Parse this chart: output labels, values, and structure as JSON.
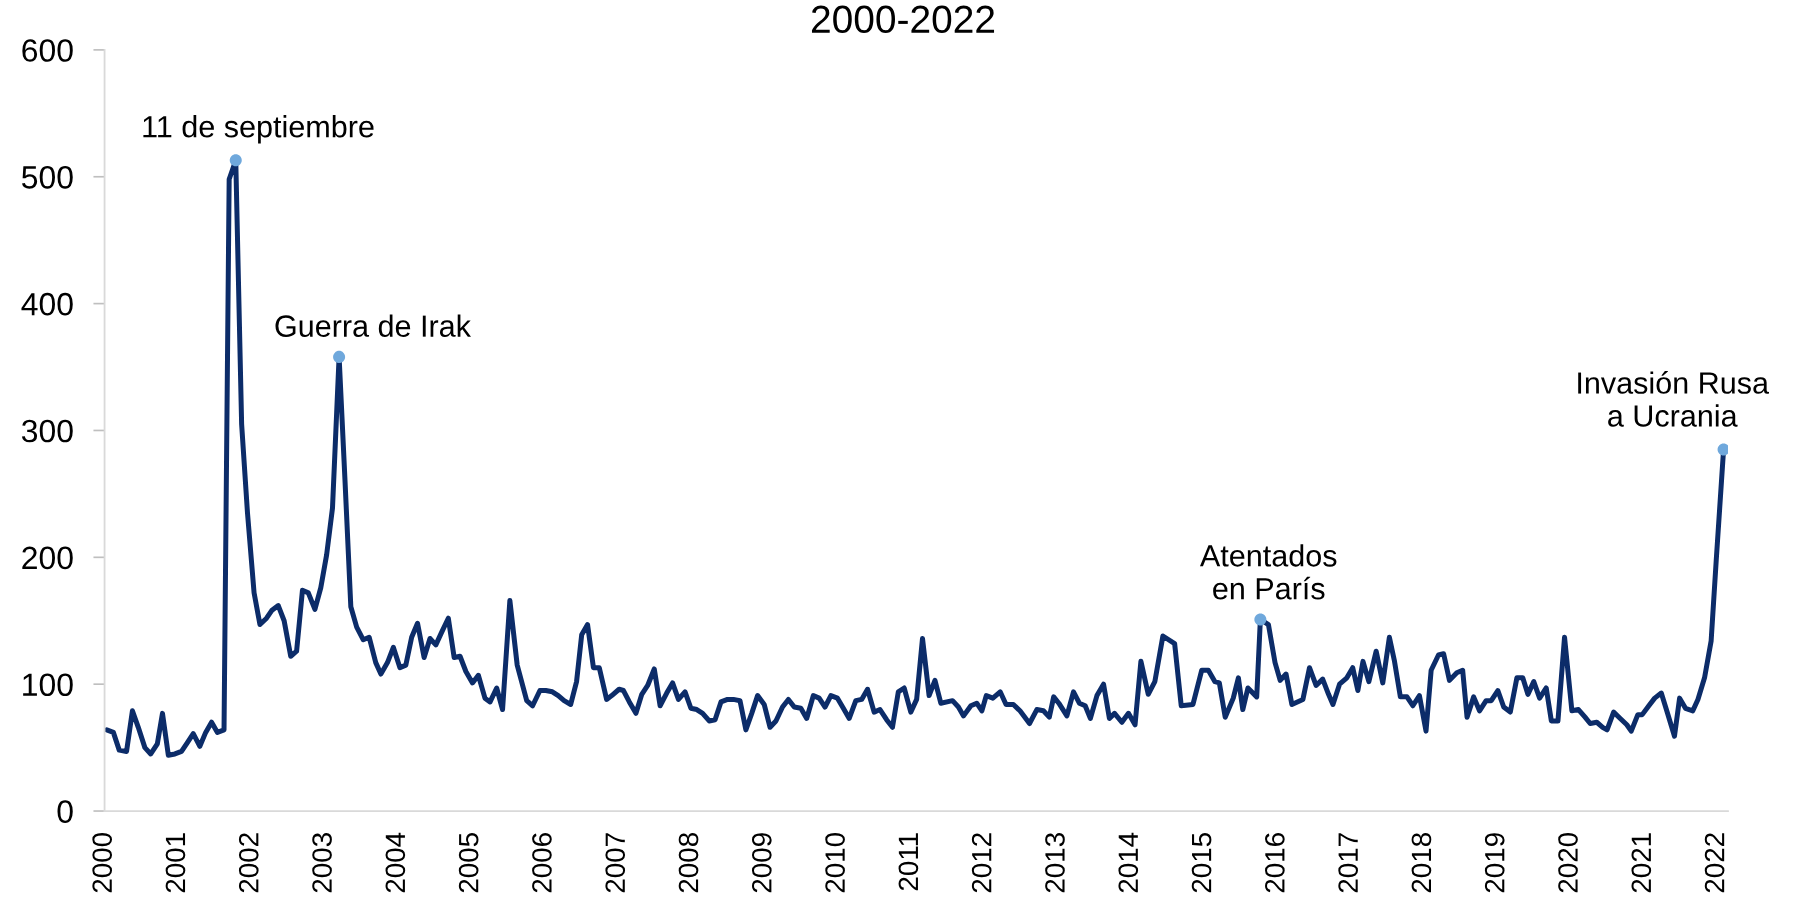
{
  "chart_data": {
    "type": "line",
    "title": "2000-2022",
    "xlim": [
      2000,
      2022.15
    ],
    "xticks": [
      2000,
      2001,
      2002,
      2003,
      2004,
      2005,
      2006,
      2007,
      2008,
      2009,
      2010,
      2011,
      2012,
      2013,
      2014,
      2015,
      2016,
      2017,
      2018,
      2019,
      2020,
      2021,
      2022
    ],
    "ylim": [
      0,
      600
    ],
    "yticks": [
      0,
      100,
      200,
      300,
      400,
      500,
      600
    ],
    "series": [
      {
        "color": "#0c2c69",
        "x": [
          2000.03,
          2000.12,
          2000.2,
          2000.3,
          2000.38,
          2000.46,
          2000.55,
          2000.63,
          2000.72,
          2000.79,
          2000.87,
          2000.96,
          2001.05,
          2001.13,
          2001.21,
          2001.3,
          2001.38,
          2001.46,
          2001.54,
          2001.63,
          2001.7,
          2001.79,
          2001.87,
          2001.95,
          2002.04,
          2002.12,
          2002.21,
          2002.28,
          2002.37,
          2002.45,
          2002.54,
          2002.62,
          2002.7,
          2002.78,
          2002.87,
          2002.95,
          2003.03,
          2003.11,
          2003.2,
          2003.28,
          2003.36,
          2003.44,
          2003.53,
          2003.61,
          2003.7,
          2003.77,
          2003.86,
          2003.94,
          2004.03,
          2004.11,
          2004.19,
          2004.27,
          2004.36,
          2004.44,
          2004.52,
          2004.6,
          2004.69,
          2004.77,
          2004.85,
          2004.93,
          2005.02,
          2005.1,
          2005.19,
          2005.26,
          2005.35,
          2005.43,
          2005.53,
          2005.63,
          2005.76,
          2005.84,
          2005.94,
          2006.02,
          2006.11,
          2006.19,
          2006.27,
          2006.36,
          2006.44,
          2006.51,
          2006.59,
          2006.67,
          2006.75,
          2006.85,
          2006.92,
          2007.02,
          2007.08,
          2007.16,
          2007.25,
          2007.33,
          2007.41,
          2007.5,
          2007.58,
          2007.67,
          2007.75,
          2007.83,
          2007.92,
          2008.0,
          2008.08,
          2008.16,
          2008.25,
          2008.33,
          2008.41,
          2008.5,
          2008.58,
          2008.67,
          2008.75,
          2008.83,
          2008.91,
          2009.0,
          2009.08,
          2009.16,
          2009.25,
          2009.33,
          2009.41,
          2009.5,
          2009.58,
          2009.67,
          2009.75,
          2009.83,
          2009.91,
          2010.0,
          2010.08,
          2010.16,
          2010.25,
          2010.33,
          2010.41,
          2010.5,
          2010.58,
          2010.67,
          2010.75,
          2010.83,
          2010.91,
          2011.0,
          2011.08,
          2011.16,
          2011.25,
          2011.33,
          2011.41,
          2011.57,
          2011.65,
          2011.72,
          2011.82,
          2011.9,
          2011.97,
          2012.03,
          2012.12,
          2012.22,
          2012.3,
          2012.4,
          2012.49,
          2012.62,
          2012.72,
          2012.81,
          2012.89,
          2012.95,
          2013.02,
          2013.13,
          2013.22,
          2013.3,
          2013.38,
          2013.45,
          2013.54,
          2013.63,
          2013.71,
          2013.78,
          2013.88,
          2013.97,
          2014.06,
          2014.14,
          2014.24,
          2014.33,
          2014.44,
          2014.6,
          2014.69,
          2014.85,
          2014.97,
          2015.06,
          2015.15,
          2015.21,
          2015.29,
          2015.4,
          2015.47,
          2015.53,
          2015.6,
          2015.72,
          2015.77,
          2015.88,
          2015.97,
          2016.04,
          2016.12,
          2016.2,
          2016.35,
          2016.44,
          2016.53,
          2016.62,
          2016.7,
          2016.76,
          2016.85,
          2016.95,
          2017.03,
          2017.1,
          2017.17,
          2017.25,
          2017.35,
          2017.44,
          2017.53,
          2017.6,
          2017.68,
          2017.77,
          2017.85,
          2017.94,
          2018.03,
          2018.1,
          2018.2,
          2018.27,
          2018.35,
          2018.45,
          2018.53,
          2018.59,
          2018.68,
          2018.76,
          2018.85,
          2018.92,
          2019.01,
          2019.09,
          2019.18,
          2019.27,
          2019.35,
          2019.42,
          2019.5,
          2019.58,
          2019.67,
          2019.74,
          2019.83,
          2019.92,
          2020.02,
          2020.11,
          2020.2,
          2020.27,
          2020.36,
          2020.44,
          2020.5,
          2020.59,
          2020.68,
          2020.77,
          2020.83,
          2020.92,
          2020.98,
          2021.07,
          2021.15,
          2021.24,
          2021.32,
          2021.42,
          2021.49,
          2021.57,
          2021.67,
          2021.74,
          2021.83,
          2021.92,
          2021.99,
          2022.09
        ],
        "values": [
          64,
          62,
          48,
          47,
          79,
          66,
          50,
          45,
          53,
          77,
          44,
          45,
          47,
          54,
          61,
          51,
          62,
          70,
          62,
          64,
          498,
          513,
          305,
          235,
          172,
          147,
          152,
          158,
          162,
          150,
          122,
          126,
          174,
          172,
          159,
          176,
          202,
          239,
          358,
          261,
          161,
          145,
          135,
          137,
          117,
          108,
          117,
          129,
          113,
          115,
          137,
          148,
          121,
          136,
          131,
          141,
          152,
          121,
          122,
          110,
          101,
          107,
          89,
          86,
          97,
          80,
          166,
          115,
          87,
          83,
          95,
          95,
          94,
          91,
          87,
          84,
          102,
          139,
          147,
          113,
          113,
          88,
          91,
          96,
          95,
          86,
          77,
          92,
          99,
          112,
          83,
          93,
          101,
          88,
          94,
          81,
          80,
          77,
          71,
          72,
          86,
          88,
          88,
          87,
          64,
          77,
          91,
          84,
          66,
          71,
          82,
          88,
          82,
          81,
          73,
          91,
          89,
          82,
          91,
          89,
          81,
          73,
          87,
          88,
          96,
          78,
          80,
          72,
          66,
          94,
          97,
          78,
          88,
          136,
          91,
          103,
          85,
          87,
          82,
          75,
          83,
          85,
          79,
          91,
          89,
          94,
          84,
          84,
          79,
          69,
          80,
          79,
          74,
          90,
          85,
          75,
          94,
          85,
          83,
          73,
          91,
          100,
          73,
          77,
          70,
          77,
          68,
          118,
          92,
          102,
          138,
          132,
          83,
          84,
          111,
          111,
          102,
          101,
          74,
          89,
          105,
          80,
          97,
          90,
          151,
          147,
          117,
          103,
          108,
          84,
          88,
          113,
          99,
          104,
          92,
          84,
          100,
          105,
          113,
          95,
          118,
          102,
          126,
          101,
          137,
          118,
          90,
          90,
          83,
          91,
          63,
          111,
          123,
          124,
          103,
          109,
          111,
          74,
          90,
          79,
          87,
          87,
          95,
          82,
          78,
          105,
          105,
          92,
          102,
          89,
          97,
          71,
          71,
          137,
          79,
          80,
          74,
          69,
          70,
          66,
          64,
          78,
          73,
          68,
          63,
          76,
          76,
          83,
          89,
          93,
          78,
          59,
          89,
          81,
          79,
          88,
          105,
          134,
          198,
          285
        ]
      },
      {
        "type": "scatter",
        "color": "#6fa8dc",
        "marker": "circle",
        "x": [
          2001.79,
          2003.2,
          2015.77,
          2022.09
        ],
        "values": [
          513,
          358,
          151,
          285
        ]
      }
    ],
    "annotations": [
      {
        "text": "11 de septiembre",
        "x": 2001.79,
        "y": 513
      },
      {
        "text": "Guerra de Irak",
        "x": 2003.2,
        "y": 358
      },
      {
        "text": "Atentados\nen París",
        "x": 2015.77,
        "y": 151
      },
      {
        "text": "Invasión Rusa\na Ucrania",
        "x": 2022.09,
        "y": 285
      }
    ]
  }
}
